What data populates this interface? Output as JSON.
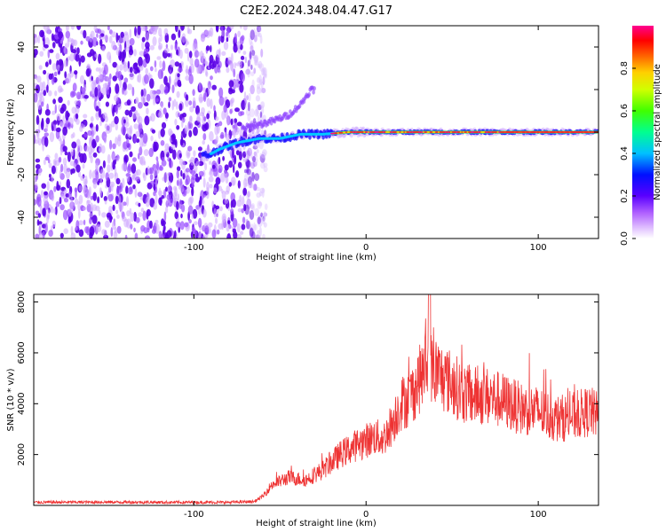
{
  "figure_title": "C2E2.2024.348.04.47.G17",
  "chart_data": [
    {
      "type": "heatmap",
      "title": "",
      "xlabel": "Height of straight line (km)",
      "ylabel": "Frequency (Hz)",
      "xlim": [
        -193,
        135
      ],
      "ylim": [
        -50,
        50
      ],
      "xticks": [
        -100,
        0,
        100
      ],
      "yticks": [
        -40,
        -20,
        0,
        20,
        40
      ],
      "colorbar": {
        "label": "Normalized spectral amplitude",
        "range": [
          0,
          1
        ],
        "ticks": [
          "0.0",
          "0.2",
          "0.4",
          "0.6",
          "0.8"
        ],
        "colors": [
          "#ffffff",
          "#c890ff",
          "#8a2be2",
          "#0000ff",
          "#00c8ff",
          "#00ff80",
          "#80ff00",
          "#ffff00",
          "#ff8000",
          "#ff0000",
          "#ff0090"
        ]
      },
      "features": {
        "noise_region_x": [
          -193,
          -62
        ],
        "signal_trace": [
          {
            "x": -92,
            "y": -11
          },
          {
            "x": -85,
            "y": -8
          },
          {
            "x": -75,
            "y": -5
          },
          {
            "x": -62,
            "y": -3
          },
          {
            "x": -50,
            "y": -3
          },
          {
            "x": -38,
            "y": -1
          },
          {
            "x": -25,
            "y": -1
          },
          {
            "x": -10,
            "y": 0
          },
          {
            "x": 0,
            "y": 0
          },
          {
            "x": 50,
            "y": 0
          },
          {
            "x": 80,
            "y": 0
          },
          {
            "x": 135,
            "y": 0
          }
        ],
        "upper_branch": [
          {
            "x": -70,
            "y": 2
          },
          {
            "x": -55,
            "y": 5
          },
          {
            "x": -45,
            "y": 8
          },
          {
            "x": -38,
            "y": 13
          },
          {
            "x": -32,
            "y": 20
          }
        ]
      }
    },
    {
      "type": "line",
      "title": "",
      "xlabel": "Height of straight line (km)",
      "ylabel": "SNR (10 * v/v)",
      "xlim": [
        -193,
        135
      ],
      "ylim": [
        0,
        8300
      ],
      "xticks": [
        -100,
        0,
        100
      ],
      "yticks": [
        2000,
        4000,
        6000,
        8000
      ],
      "series": [
        {
          "color": "#ee3333",
          "envelope": [
            {
              "x": -193,
              "y": 120
            },
            {
              "x": -150,
              "y": 130
            },
            {
              "x": -110,
              "y": 120
            },
            {
              "x": -80,
              "y": 120
            },
            {
              "x": -65,
              "y": 150
            },
            {
              "x": -60,
              "y": 350
            },
            {
              "x": -55,
              "y": 800
            },
            {
              "x": -45,
              "y": 1100
            },
            {
              "x": -35,
              "y": 1000
            },
            {
              "x": -25,
              "y": 1400
            },
            {
              "x": -15,
              "y": 2000
            },
            {
              "x": -5,
              "y": 2400
            },
            {
              "x": 5,
              "y": 2700
            },
            {
              "x": 10,
              "y": 2600
            },
            {
              "x": 15,
              "y": 3200
            },
            {
              "x": 20,
              "y": 4000
            },
            {
              "x": 25,
              "y": 4200
            },
            {
              "x": 30,
              "y": 4800
            },
            {
              "x": 35,
              "y": 5500
            },
            {
              "x": 40,
              "y": 5300
            },
            {
              "x": 45,
              "y": 5000
            },
            {
              "x": 50,
              "y": 4800
            },
            {
              "x": 55,
              "y": 4500
            },
            {
              "x": 60,
              "y": 4300
            },
            {
              "x": 70,
              "y": 4300
            },
            {
              "x": 80,
              "y": 4100
            },
            {
              "x": 90,
              "y": 3800
            },
            {
              "x": 100,
              "y": 3700
            },
            {
              "x": 110,
              "y": 3400
            },
            {
              "x": 120,
              "y": 3500
            },
            {
              "x": 130,
              "y": 3700
            },
            {
              "x": 135,
              "y": 3500
            }
          ]
        }
      ]
    }
  ]
}
